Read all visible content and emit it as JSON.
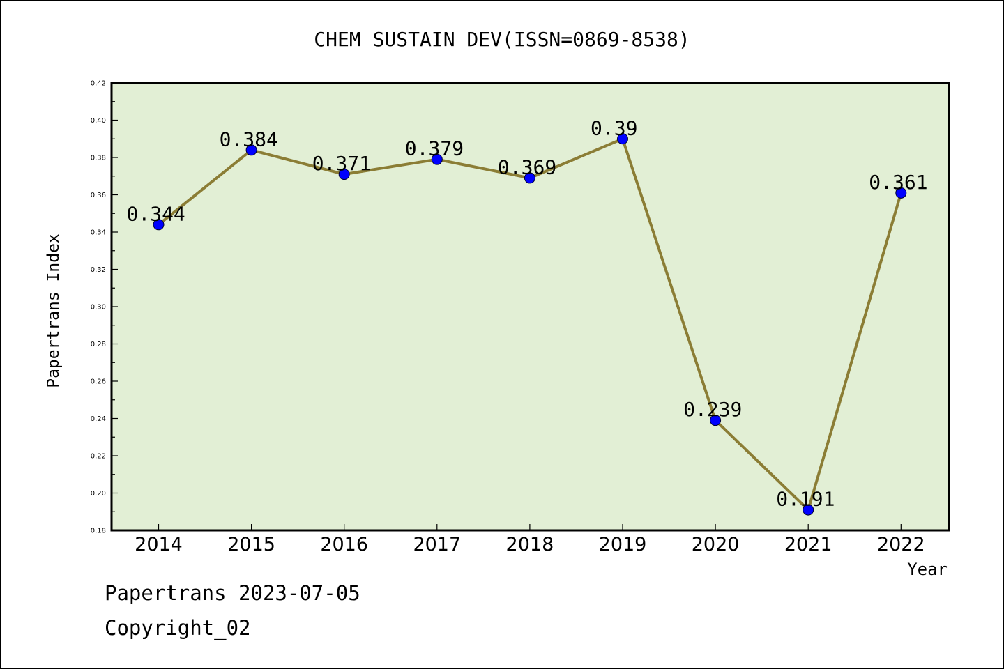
{
  "footer": {
    "line1": "Papertrans 2023-07-05",
    "line2": "Copyright_02"
  },
  "colors": {
    "plot_background": "#e2efd5",
    "line": "#8b7d35",
    "marker": "#0000ff",
    "axis": "#000000"
  },
  "chart_data": {
    "type": "line",
    "title": "CHEM SUSTAIN DEV(ISSN=0869-8538)",
    "xlabel": "Year",
    "ylabel": "Papertrans Index",
    "ylim": [
      0.18,
      0.42
    ],
    "ytick_labels": [
      "0.18",
      "0.20",
      "0.22",
      "0.24",
      "0.26",
      "0.28",
      "0.30",
      "0.32",
      "0.34",
      "0.36",
      "0.38",
      "0.40",
      "0.42"
    ],
    "categories": [
      "2014",
      "2015",
      "2016",
      "2017",
      "2018",
      "2019",
      "2020",
      "2021",
      "2022"
    ],
    "values": [
      0.344,
      0.384,
      0.371,
      0.379,
      0.369,
      0.39,
      0.239,
      0.191,
      0.361
    ],
    "data_labels": [
      "0.344",
      "0.384",
      "0.371",
      "0.379",
      "0.369",
      "0.39",
      "0.239",
      "0.191",
      "0.361"
    ],
    "grid": false,
    "legend": "none"
  }
}
